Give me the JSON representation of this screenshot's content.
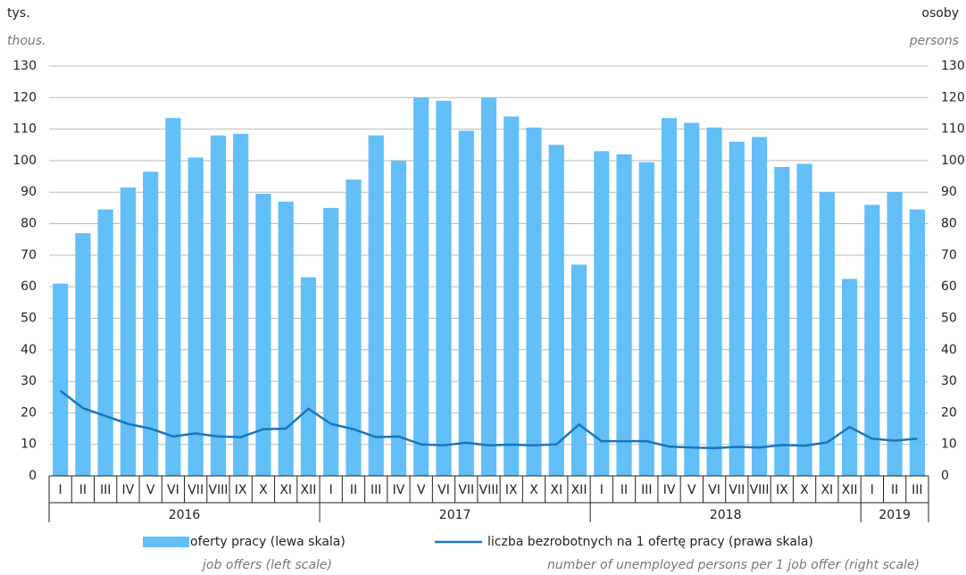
{
  "chart_data": {
    "type": "bar",
    "y_label": "tys.",
    "y_label_en": "thous.",
    "y2_label": "osoby",
    "y2_label_en": "persons",
    "groups": [
      {
        "label": "2016",
        "categories": [
          "I",
          "II",
          "III",
          "IV",
          "V",
          "VI",
          "VII",
          "VIII",
          "IX",
          "X",
          "XI",
          "XII"
        ]
      },
      {
        "label": "2017",
        "categories": [
          "I",
          "II",
          "III",
          "IV",
          "V",
          "VI",
          "VII",
          "VIII",
          "IX",
          "X",
          "XI",
          "XII"
        ]
      },
      {
        "label": "2018",
        "categories": [
          "I",
          "II",
          "III",
          "IV",
          "V",
          "VI",
          "VII",
          "VIII",
          "IX",
          "X",
          "XI",
          "XII"
        ]
      },
      {
        "label": "2019",
        "categories": [
          "I",
          "II",
          "III"
        ]
      }
    ],
    "series": [
      {
        "name": "oferty pracy (lewa skala)",
        "name_en": "job offers (left scale)",
        "type": "bar",
        "axis": "y",
        "color": "#62bff7",
        "values": [
          61,
          77,
          84.5,
          91.5,
          96.5,
          113.5,
          101,
          108,
          108.5,
          89.5,
          87,
          63,
          85,
          94,
          108,
          100,
          120,
          119,
          109.5,
          120,
          114,
          110.5,
          105,
          67,
          103,
          102,
          99.5,
          113.5,
          112,
          110.5,
          106,
          107.5,
          98,
          99,
          90,
          62.5,
          86,
          90,
          84.5
        ]
      },
      {
        "name": "liczba bezrobotnych na 1 ofertę pracy (prawa skala)",
        "name_en": "number of unemployed persons per 1 job offer (right scale)",
        "type": "line",
        "axis": "y2",
        "color": "#1a75bb",
        "values": [
          27,
          21.5,
          19,
          16.5,
          15,
          12.5,
          13.5,
          12.5,
          12.3,
          14.8,
          15,
          21.3,
          16.5,
          14.8,
          12.3,
          12.5,
          10,
          9.7,
          10.5,
          9.7,
          9.9,
          9.7,
          10,
          16.3,
          11,
          11,
          11,
          9.3,
          9,
          8.8,
          9.2,
          9,
          9.8,
          9.6,
          10.6,
          15.5,
          11.8,
          11.2,
          11.8
        ]
      }
    ],
    "ylim": [
      0,
      130
    ],
    "yticks": [
      0,
      10,
      20,
      30,
      40,
      50,
      60,
      70,
      80,
      90,
      100,
      110,
      120,
      130
    ],
    "y2lim": [
      0,
      130
    ],
    "y2ticks": [
      0,
      10,
      20,
      30,
      40,
      50,
      60,
      70,
      80,
      90,
      100,
      110,
      120,
      130
    ],
    "grid": true
  }
}
